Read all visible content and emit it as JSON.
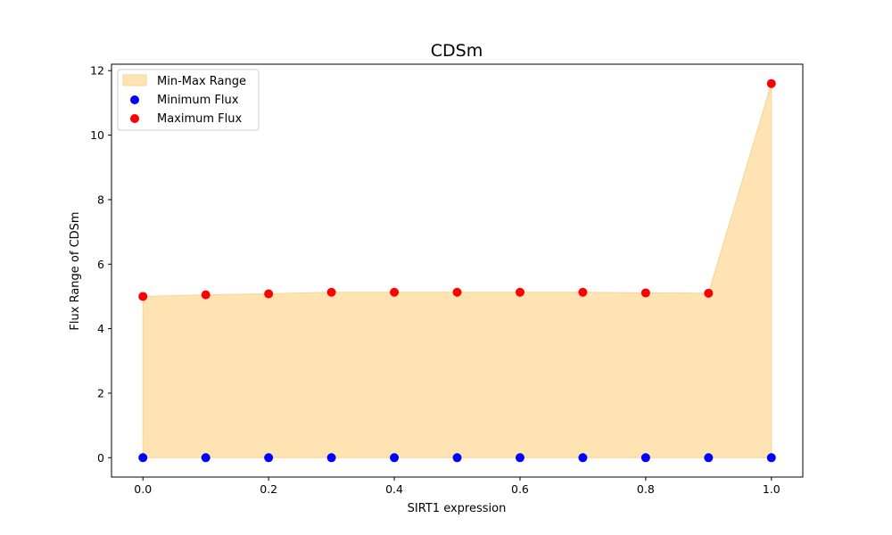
{
  "chart_data": {
    "type": "scatter",
    "title": "CDSm",
    "xlabel": "SIRT1 expression",
    "ylabel": "Flux Range of CDSm",
    "xlim": [
      -0.05,
      1.05
    ],
    "ylim": [
      -0.6,
      12.2
    ],
    "x_ticks": [
      0.0,
      0.2,
      0.4,
      0.6,
      0.8,
      1.0
    ],
    "x_tick_labels": [
      "0.0",
      "0.2",
      "0.4",
      "0.6",
      "0.8",
      "1.0"
    ],
    "y_ticks": [
      0,
      2,
      4,
      6,
      8,
      10,
      12
    ],
    "y_tick_labels": [
      "0",
      "2",
      "4",
      "6",
      "8",
      "10",
      "12"
    ],
    "grid": false,
    "legend_position": "top-left",
    "x": [
      0.0,
      0.1,
      0.2,
      0.3,
      0.4,
      0.5,
      0.6,
      0.7,
      0.8,
      0.9,
      1.0
    ],
    "series": [
      {
        "name": "Min-Max Range",
        "kind": "fill_between",
        "color": "#ffe3b3",
        "edge_color": "#f6d596"
      },
      {
        "name": "Minimum Flux",
        "kind": "scatter",
        "color": "#0000ff",
        "values": [
          0,
          0,
          0,
          0,
          0,
          0,
          0,
          0,
          0,
          0,
          0
        ]
      },
      {
        "name": "Maximum Flux",
        "kind": "scatter",
        "color": "#ff0000",
        "values": [
          5.0,
          5.05,
          5.08,
          5.13,
          5.13,
          5.13,
          5.13,
          5.13,
          5.11,
          5.1,
          11.6
        ]
      }
    ]
  }
}
